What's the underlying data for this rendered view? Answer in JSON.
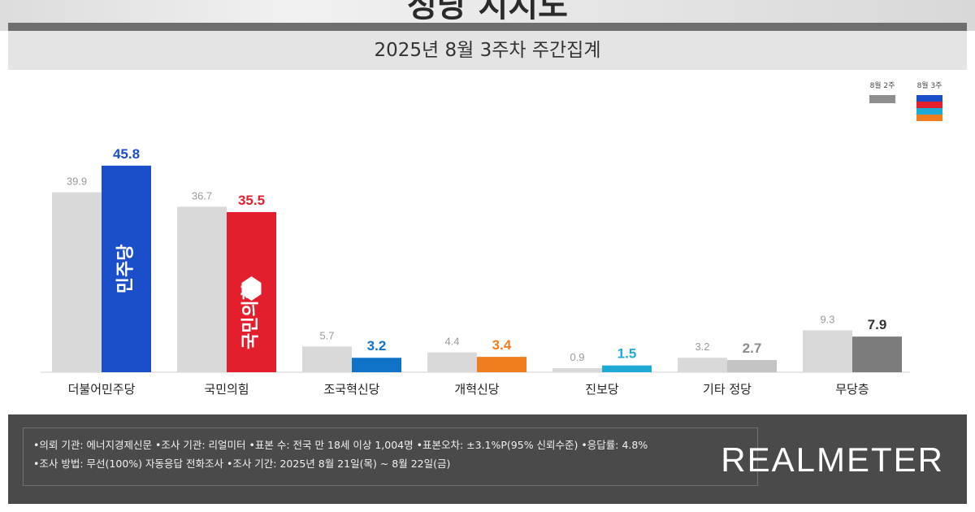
{
  "header": {
    "title": "정당 지지도",
    "subtitle": "2025년 8월 3주차 주간집계"
  },
  "legend": {
    "prev_label": "8월 2주",
    "cur_label": "8월 3주"
  },
  "colors": {
    "prev": "#d9d9d9",
    "party_colors": [
      "#1a4fc9",
      "#e31e2d",
      "#0f73c8",
      "#f07d1e",
      "#1ea9d7",
      "#c4c4c4",
      "#7c7c7c"
    ],
    "value_colors": [
      "#1a4fc9",
      "#e31e2d",
      "#0f73c8",
      "#f07d1e",
      "#1ea9d7",
      "#8c8c8c",
      "#333333"
    ]
  },
  "chart_data": {
    "type": "bar",
    "title": "2025년 8월 3주차 주간집계",
    "categories": [
      "더불어민주당",
      "국민의힘",
      "조국혁신당",
      "개혁신당",
      "진보당",
      "기타 정당",
      "무당층"
    ],
    "series": [
      {
        "name": "8월 2주",
        "values": [
          39.9,
          36.7,
          5.7,
          4.4,
          0.9,
          3.2,
          9.3
        ]
      },
      {
        "name": "8월 3주",
        "values": [
          45.8,
          35.5,
          3.2,
          3.4,
          1.5,
          2.7,
          7.9
        ]
      }
    ],
    "value_labels_prev": [
      "39.9",
      "36.7",
      "5.7",
      "4.4",
      "0.9",
      "3.2",
      "9.3"
    ],
    "value_labels_cur": [
      "45.8",
      "35.5",
      "3.2",
      "3.4",
      "1.5",
      "2.7",
      "7.9"
    ],
    "bar_logos": [
      "민주당",
      "국민의힘"
    ],
    "ylim": [
      0,
      50
    ]
  },
  "footer": {
    "line1": "•의뢰 기관: 에너지경제신문   •조사 기관: 리얼미터 •표본 수: 전국 만 18세 이상 1,004명 •표본오차: ±3.1%P(95% 신뢰수준) •응답률: 4.8%",
    "line2": "•조사 방법: 무선(100%) 자동응답 전화조사   •조사 기간: 2025년 8월 21일(목) ~ 8월 22일(금)",
    "brand": "REALMETER"
  }
}
